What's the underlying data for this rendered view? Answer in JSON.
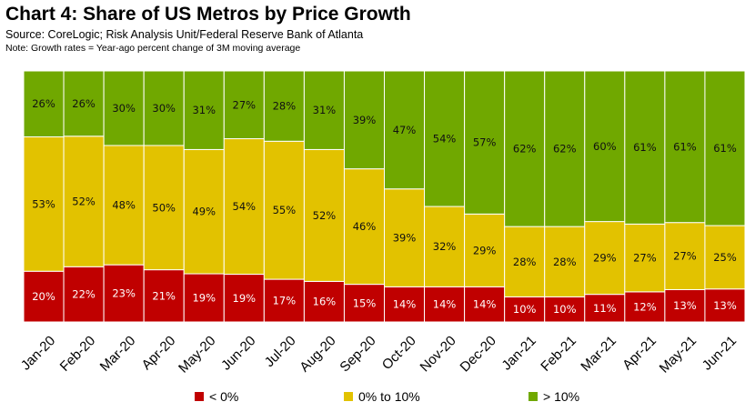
{
  "title": "Chart 4: Share of US Metros by Price Growth",
  "source": "Source: CoreLogic; Risk Analysis Unit/Federal Reserve Bank of Atlanta",
  "note": "Note: Growth rates = Year-ago percent change of 3M moving average",
  "chart_data": {
    "type": "bar",
    "stacked": true,
    "percent_stacked": true,
    "title": "Chart 4: Share of US Metros by Price Growth",
    "xlabel": "",
    "ylabel": "",
    "ylim": [
      0,
      100
    ],
    "grid": false,
    "legend_position": "bottom",
    "categories": [
      "Jan-20",
      "Feb-20",
      "Mar-20",
      "Apr-20",
      "May-20",
      "Jun-20",
      "Jul-20",
      "Aug-20",
      "Sep-20",
      "Oct-20",
      "Nov-20",
      "Dec-20",
      "Jan-21",
      "Feb-21",
      "Mar-21",
      "Apr-21",
      "May-21",
      "Jun-21"
    ],
    "series": [
      {
        "name": "< 0%",
        "color": "#c00000",
        "values": [
          20,
          22,
          23,
          21,
          19,
          19,
          17,
          16,
          15,
          14,
          14,
          14,
          10,
          10,
          11,
          12,
          13,
          13
        ]
      },
      {
        "name": "0% to 10%",
        "color": "#e2c200",
        "values": [
          53,
          52,
          48,
          50,
          49,
          54,
          55,
          52,
          46,
          39,
          32,
          29,
          28,
          28,
          29,
          27,
          27,
          25
        ]
      },
      {
        "name": "> 10%",
        "color": "#70a800",
        "values": [
          26,
          26,
          30,
          30,
          31,
          27,
          28,
          31,
          39,
          47,
          54,
          57,
          62,
          62,
          60,
          61,
          61,
          61
        ]
      }
    ],
    "data_labels": [
      "20%",
      "22%",
      "23%",
      "21%",
      "19%",
      "19%",
      "17%",
      "16%",
      "15%",
      "14%",
      "14%",
      "14%",
      "10%",
      "10%",
      "11%",
      "12%",
      "13%",
      "13%",
      "53%",
      "52%",
      "48%",
      "50%",
      "49%",
      "54%",
      "55%",
      "52%",
      "46%",
      "39%",
      "32%",
      "29%",
      "28%",
      "28%",
      "29%",
      "27%",
      "27%",
      "25%",
      "26%",
      "26%",
      "30%",
      "30%",
      "31%",
      "27%",
      "28%",
      "31%",
      "39%",
      "47%",
      "54%",
      "57%",
      "62%",
      "62%",
      "60%",
      "61%",
      "61%",
      "61%"
    ]
  }
}
